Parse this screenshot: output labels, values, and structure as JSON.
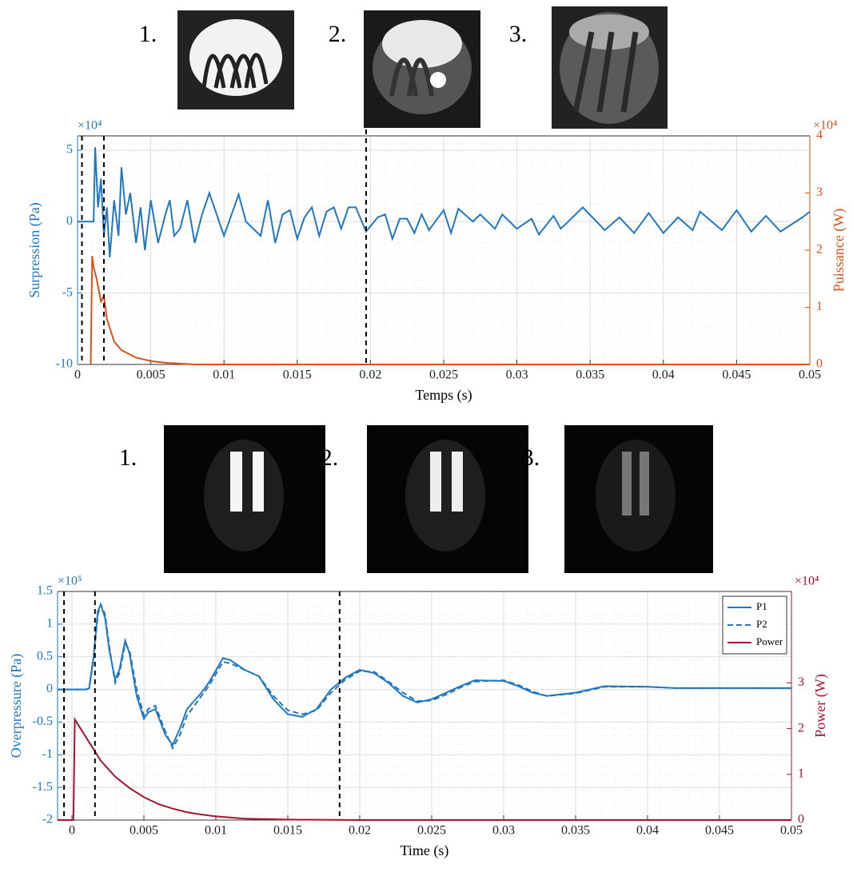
{
  "chart_data": [
    {
      "type": "line",
      "xlabel": "Temps (s)",
      "ylabel": "Surpression (Pa)",
      "y2label": "Puissance (W)",
      "y_scale_label": "×10⁴",
      "y2_scale_label": "×10⁴",
      "photo_labels": [
        "1.",
        "2.",
        "3."
      ],
      "ycolor": "#1f78c1",
      "y2color": "#d95319",
      "grid": true,
      "xlim": [
        0,
        0.05
      ],
      "xticks": [
        0,
        0.005,
        0.01,
        0.015,
        0.02,
        0.025,
        0.03,
        0.035,
        0.04,
        0.045,
        0.05
      ],
      "ylim": [
        -10,
        6
      ],
      "yticks": [
        -10,
        -5,
        0,
        5
      ],
      "y2lim": [
        0,
        4
      ],
      "y2ticks": [
        0,
        1,
        2,
        3,
        4
      ],
      "markers_x": [
        0.0003,
        0.0018,
        0.0197
      ],
      "series": [
        {
          "color": "#1f78c1",
          "axis": "y",
          "x": [
            0,
            0.0011,
            0.0012,
            0.0014,
            0.0016,
            0.0018,
            0.002,
            0.0022,
            0.0025,
            0.0028,
            0.003,
            0.0033,
            0.0036,
            0.004,
            0.0043,
            0.0046,
            0.005,
            0.0055,
            0.006,
            0.0063,
            0.0066,
            0.007,
            0.0075,
            0.008,
            0.0085,
            0.009,
            0.0095,
            0.01,
            0.011,
            0.0115,
            0.012,
            0.0125,
            0.013,
            0.0135,
            0.014,
            0.0145,
            0.015,
            0.0155,
            0.016,
            0.0165,
            0.017,
            0.0175,
            0.018,
            0.0185,
            0.019,
            0.0197,
            0.0205,
            0.021,
            0.0215,
            0.022,
            0.0225,
            0.023,
            0.0235,
            0.024,
            0.025,
            0.0255,
            0.026,
            0.027,
            0.0275,
            0.0285,
            0.029,
            0.03,
            0.031,
            0.0315,
            0.0325,
            0.033,
            0.0345,
            0.036,
            0.037,
            0.038,
            0.039,
            0.04,
            0.041,
            0.042,
            0.0425,
            0.044,
            0.045,
            0.046,
            0.047,
            0.048,
            0.0495,
            0.05
          ],
          "values": [
            0,
            0,
            5.2,
            1,
            3,
            -1,
            1,
            -2.5,
            1.5,
            -1,
            3.8,
            0.5,
            2,
            -1.5,
            1,
            -2,
            1.5,
            -1.5,
            0.5,
            1.5,
            -1,
            -0.5,
            1.5,
            -1.5,
            0.5,
            2,
            0.5,
            -1,
            1.9,
            0,
            -0.5,
            -1,
            1.5,
            -1.5,
            0.5,
            0.8,
            -1.2,
            0.3,
            1,
            -1,
            0.7,
            1,
            -0.5,
            1,
            1,
            -0.7,
            0.3,
            0.5,
            -1.2,
            0.2,
            0.2,
            -0.8,
            0.5,
            -0.6,
            0.8,
            -0.8,
            0.9,
            0,
            0.5,
            -0.5,
            0.5,
            -0.5,
            0.2,
            -0.9,
            0.4,
            -0.5,
            1,
            -0.6,
            0.3,
            -0.8,
            0.6,
            -0.8,
            0.3,
            -0.6,
            0.7,
            -0.6,
            0.8,
            -0.7,
            0.4,
            -0.7,
            0.3,
            0.7
          ]
        },
        {
          "color": "#d95319",
          "axis": "y2",
          "x": [
            0.0009,
            0.001,
            0.0011,
            0.0013,
            0.0016,
            0.0018,
            0.002,
            0.0025,
            0.003,
            0.004,
            0.005,
            0.006,
            0.008,
            0.05
          ],
          "values": [
            0,
            1.9,
            1.7,
            1.5,
            1.1,
            1.2,
            0.8,
            0.4,
            0.25,
            0.12,
            0.06,
            0.03,
            0,
            0
          ]
        }
      ]
    },
    {
      "type": "line",
      "xlabel": "Time (s)",
      "ylabel": "Overpressure (Pa)",
      "y2label": "Power (W)",
      "y_scale_label": "×10⁵",
      "y2_scale_label": "×10⁴",
      "photo_labels": [
        "1.",
        "2.",
        "3."
      ],
      "ycolor": "#1f78c1",
      "y2color": "#a2142f",
      "grid": true,
      "legend": "upper right",
      "xlim": [
        -0.001,
        0.05
      ],
      "xticks": [
        0,
        0.005,
        0.01,
        0.015,
        0.02,
        0.025,
        0.03,
        0.035,
        0.04,
        0.045,
        0.05
      ],
      "ylim": [
        -2,
        1.5
      ],
      "yticks": [
        -2,
        -1.5,
        -1,
        -0.5,
        0,
        0.5,
        1,
        1.5
      ],
      "y2lim": [
        0,
        5
      ],
      "y2ticks": [
        0,
        1,
        2,
        3
      ],
      "markers_x": [
        -0.00055,
        0.0016,
        0.0186
      ],
      "series": [
        {
          "name": "P1",
          "color": "#1f78c1",
          "axis": "y",
          "x": [
            -0.001,
            0.001,
            0.0012,
            0.0015,
            0.0018,
            0.002,
            0.0023,
            0.0026,
            0.003,
            0.0033,
            0.0037,
            0.004,
            0.0045,
            0.005,
            0.0053,
            0.0058,
            0.0065,
            0.007,
            0.0075,
            0.008,
            0.009,
            0.0095,
            0.0105,
            0.011,
            0.012,
            0.013,
            0.014,
            0.015,
            0.016,
            0.017,
            0.018,
            0.019,
            0.02,
            0.021,
            0.022,
            0.023,
            0.024,
            0.025,
            0.026,
            0.027,
            0.028,
            0.03,
            0.031,
            0.032,
            0.033,
            0.035,
            0.037,
            0.04,
            0.042,
            0.045,
            0.05
          ],
          "values": [
            0,
            0,
            0.02,
            0.5,
            1.2,
            1.3,
            1.1,
            0.6,
            0.15,
            0.3,
            0.75,
            0.55,
            -0.1,
            -0.45,
            -0.35,
            -0.3,
            -0.7,
            -0.85,
            -0.6,
            -0.3,
            -0.05,
            0.1,
            0.48,
            0.45,
            0.3,
            0.2,
            -0.15,
            -0.38,
            -0.42,
            -0.3,
            0,
            0.18,
            0.3,
            0.25,
            0.1,
            -0.1,
            -0.2,
            -0.15,
            -0.05,
            0.05,
            0.14,
            0.13,
            0.05,
            -0.05,
            -0.1,
            -0.05,
            0.05,
            0.04,
            0.02,
            0.02,
            0.02
          ]
        },
        {
          "name": "P2",
          "color": "#1f78c1",
          "axis": "y",
          "dashed": true,
          "x": [
            -0.001,
            0.001,
            0.0012,
            0.0015,
            0.0018,
            0.002,
            0.0023,
            0.0026,
            0.003,
            0.0033,
            0.0037,
            0.004,
            0.0045,
            0.005,
            0.0053,
            0.0058,
            0.0065,
            0.007,
            0.0075,
            0.008,
            0.009,
            0.0095,
            0.0105,
            0.011,
            0.012,
            0.013,
            0.014,
            0.015,
            0.016,
            0.017,
            0.018,
            0.019,
            0.02,
            0.021,
            0.022,
            0.023,
            0.024,
            0.025,
            0.026,
            0.027,
            0.028,
            0.03,
            0.031,
            0.032,
            0.033,
            0.035,
            0.037,
            0.04,
            0.042,
            0.045,
            0.05
          ],
          "values": [
            0,
            0,
            0.02,
            0.45,
            1.15,
            1.3,
            1.15,
            0.65,
            0.1,
            0.25,
            0.7,
            0.6,
            0,
            -0.4,
            -0.3,
            -0.25,
            -0.65,
            -0.9,
            -0.7,
            -0.4,
            -0.1,
            0.05,
            0.42,
            0.4,
            0.3,
            0.2,
            -0.1,
            -0.32,
            -0.38,
            -0.32,
            -0.05,
            0.15,
            0.28,
            0.27,
            0.12,
            -0.05,
            -0.18,
            -0.17,
            -0.08,
            0.03,
            0.12,
            0.14,
            0.07,
            -0.03,
            -0.1,
            -0.06,
            0.04,
            0.04,
            0.02,
            0.02,
            0.02
          ]
        },
        {
          "name": "Power",
          "color": "#a2142f",
          "axis": "y2",
          "x": [
            -0.001,
            0.0001,
            0.0002,
            0.001,
            0.002,
            0.003,
            0.004,
            0.005,
            0.006,
            0.007,
            0.008,
            0.009,
            0.01,
            0.012,
            0.015,
            0.02,
            0.05
          ],
          "values": [
            0,
            0,
            2.2,
            1.8,
            1.3,
            0.95,
            0.7,
            0.5,
            0.35,
            0.25,
            0.17,
            0.12,
            0.08,
            0.03,
            0.01,
            0,
            0
          ]
        }
      ]
    }
  ]
}
